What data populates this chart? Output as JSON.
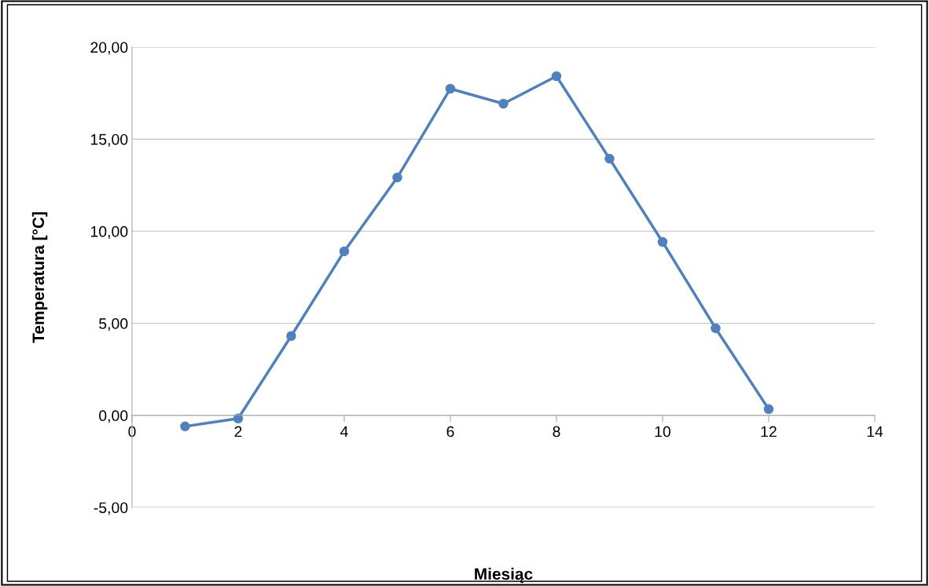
{
  "chart_data": {
    "type": "line",
    "xlabel": "Miesiąc",
    "ylabel": "Temperatura [°C]",
    "x": [
      1,
      2,
      3,
      4,
      5,
      6,
      7,
      8,
      9,
      10,
      11,
      12
    ],
    "series": [
      {
        "color": "#4f81bd",
        "values": [
          -0.6,
          -0.17,
          4.31,
          8.91,
          12.92,
          17.74,
          16.93,
          18.42,
          13.94,
          9.42,
          4.73,
          0.34
        ]
      }
    ],
    "xlim": [
      0,
      14
    ],
    "xticks": [
      0,
      2,
      4,
      6,
      8,
      10,
      12,
      14
    ],
    "ylim": [
      -5,
      20
    ],
    "yticks": [
      {
        "value": -5,
        "label": "-5,00"
      },
      {
        "value": 0,
        "label": "0,00"
      },
      {
        "value": 5,
        "label": "5,00"
      },
      {
        "value": 10,
        "label": "10,00"
      },
      {
        "value": 15,
        "label": "15,00"
      },
      {
        "value": 20,
        "label": "20,00"
      }
    ],
    "grid": "y",
    "marker": "circle",
    "line_style": "solid"
  }
}
